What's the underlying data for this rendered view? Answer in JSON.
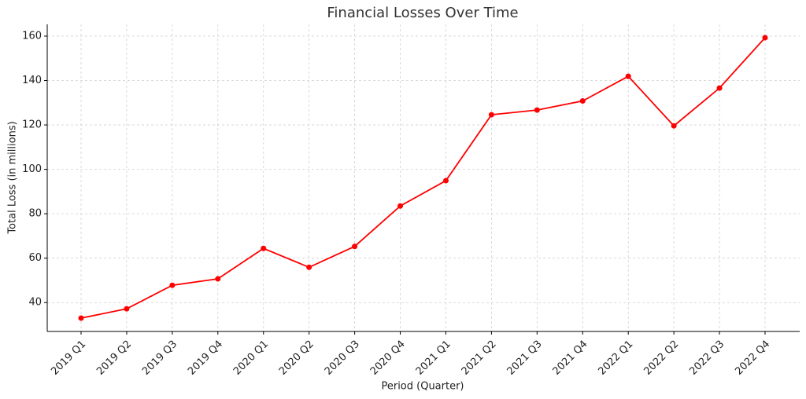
{
  "chart_data": {
    "type": "line",
    "title": "Financial Losses Over Time",
    "x_label": "Period (Quarter)",
    "y_label": "Total Loss (in millions)",
    "categories": [
      "2019 Q1",
      "2019 Q2",
      "2019 Q3",
      "2019 Q4",
      "2020 Q1",
      "2020 Q2",
      "2020 Q3",
      "2020 Q4",
      "2021 Q1",
      "2021 Q2",
      "2021 Q3",
      "2021 Q4",
      "2022 Q1",
      "2022 Q2",
      "2022 Q3",
      "2022 Q4"
    ],
    "series": [
      {
        "name": "Total Loss",
        "color": "#ff0000",
        "values": [
          33,
          37.2,
          47.8,
          50.7,
          64.4,
          55.9,
          65.3,
          83.5,
          94.9,
          124.6,
          126.7,
          130.8,
          141.9,
          119.6,
          136.6,
          159.3
        ]
      }
    ],
    "ylim": [
      27,
      165.3
    ],
    "yticks": [
      40,
      60,
      80,
      100,
      120,
      140,
      160
    ],
    "grid": true
  }
}
